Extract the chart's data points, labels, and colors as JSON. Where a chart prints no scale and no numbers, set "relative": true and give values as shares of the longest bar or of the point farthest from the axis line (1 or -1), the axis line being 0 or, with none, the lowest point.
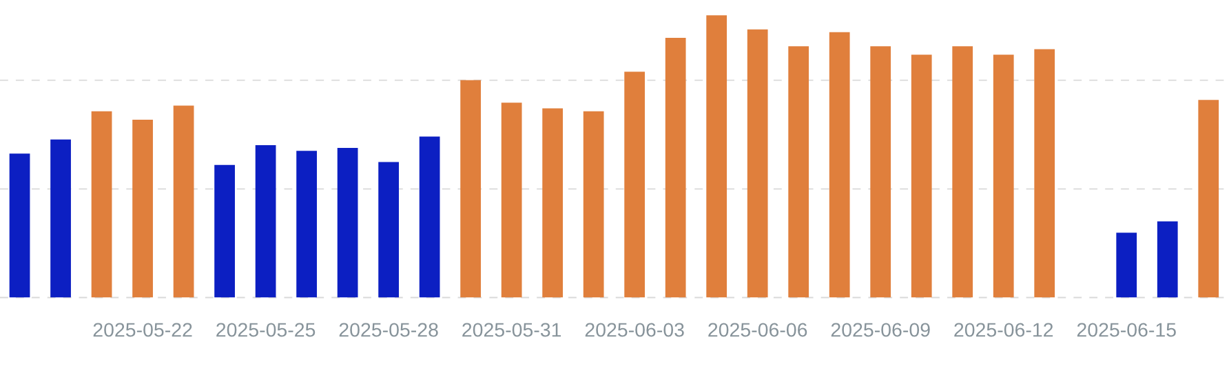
{
  "chart_data": {
    "type": "bar",
    "relative": true,
    "categories": [
      null,
      null,
      null,
      "2025-05-22",
      null,
      null,
      "2025-05-25",
      null,
      null,
      "2025-05-28",
      null,
      null,
      "2025-05-31",
      null,
      null,
      "2025-06-03",
      null,
      null,
      "2025-06-06",
      null,
      null,
      "2025-06-09",
      null,
      null,
      "2025-06-12",
      null,
      null,
      "2025-06-15",
      null,
      null
    ],
    "values": [
      0.51,
      0.56,
      0.66,
      0.63,
      0.68,
      0.47,
      0.54,
      0.52,
      0.53,
      0.48,
      0.57,
      0.77,
      0.69,
      0.67,
      0.66,
      0.8,
      0.92,
      1,
      0.95,
      0.89,
      0.94,
      0.89,
      0.86,
      0.89,
      0.86,
      0.88,
      null,
      0.23,
      0.27,
      0.7
    ],
    "colors": [
      "#0c1fc2",
      "#0c1fc2",
      "#e07f3c",
      "#e07f3c",
      "#e07f3c",
      "#0c1fc2",
      "#0c1fc2",
      "#0c1fc2",
      "#0c1fc2",
      "#0c1fc2",
      "#0c1fc2",
      "#e07f3c",
      "#e07f3c",
      "#e07f3c",
      "#e07f3c",
      "#e07f3c",
      "#e07f3c",
      "#e07f3c",
      "#e07f3c",
      "#e07f3c",
      "#e07f3c",
      "#e07f3c",
      "#e07f3c",
      "#e07f3c",
      "#e07f3c",
      "#e07f3c",
      null,
      "#0c1fc2",
      "#0c1fc2",
      "#e07f3c"
    ],
    "ref_lines": [
      {
        "axis": "y",
        "value": 0,
        "color": "#d9d9d9",
        "line_style": "dashed"
      },
      {
        "axis": "y",
        "value": 0.385,
        "color": "#d9d9d9",
        "line_style": "dashed"
      },
      {
        "axis": "y",
        "value": 0.77,
        "color": "#d9d9d9",
        "line_style": "dashed"
      }
    ],
    "tick_labels": "x"
  }
}
